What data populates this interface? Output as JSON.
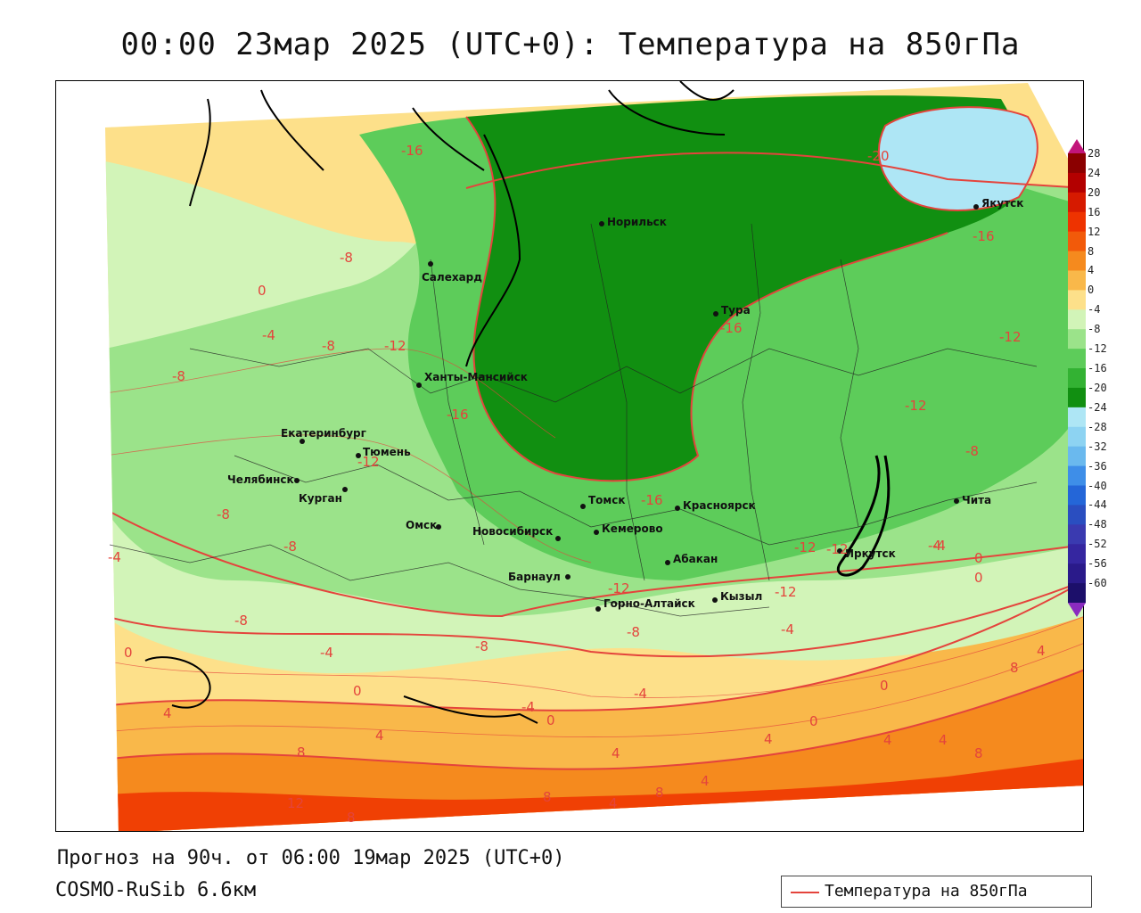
{
  "title": "00:00 23мар 2025 (UTC+0): Температура на 850гПа",
  "footer": {
    "forecast": "Прогноз на 90ч. от 06:00 19мар 2025 (UTC+0)",
    "model": "COSMO-RuSib 6.6км"
  },
  "legend": {
    "label": "Температура на 850гПа",
    "line_color": "#e4443c"
  },
  "colorbar": {
    "ticks": [
      "28",
      "24",
      "20",
      "16",
      "12",
      "8",
      "4",
      "0",
      "-4",
      "-8",
      "-12",
      "-16",
      "-20",
      "-24",
      "-28",
      "-32",
      "-36",
      "-40",
      "-44",
      "-48",
      "-52",
      "-56",
      "-60"
    ],
    "colors": [
      "#8b0000",
      "#b30000",
      "#d61a00",
      "#ee3300",
      "#f25a0a",
      "#f58a1e",
      "#f9b84a",
      "#fde08a",
      "#d2f4b8",
      "#9be38a",
      "#5dcc5a",
      "#33b233",
      "#118f11",
      "#aee6f5",
      "#8dd3f2",
      "#6ab9ee",
      "#3e8ee8",
      "#2466d8",
      "#2a4ec0",
      "#3a3ab0",
      "#3526a0",
      "#2a1a8a",
      "#1c0f6a"
    ]
  },
  "cities": [
    {
      "name": "Якутск"
    },
    {
      "name": "Норильск"
    },
    {
      "name": "Салехард"
    },
    {
      "name": "Тура"
    },
    {
      "name": "Ханты-Мансийск"
    },
    {
      "name": "Екатеринбург"
    },
    {
      "name": "Тюмень"
    },
    {
      "name": "Челябинск"
    },
    {
      "name": "Курган"
    },
    {
      "name": "Омск"
    },
    {
      "name": "Томск"
    },
    {
      "name": "Новосибирск"
    },
    {
      "name": "Кемерово"
    },
    {
      "name": "Красноярск"
    },
    {
      "name": "Абакан"
    },
    {
      "name": "Барнаул"
    },
    {
      "name": "Иркутск"
    },
    {
      "name": "Чита"
    },
    {
      "name": "Горно-Алтайск"
    },
    {
      "name": "Кызыл"
    }
  ],
  "contour_labels": [
    "-16",
    "-20",
    "-16",
    "-8",
    "0",
    "-4",
    "-8",
    "-12",
    "-16",
    "-16",
    "-12",
    "-12",
    "-8",
    "-8",
    "-12",
    "-8",
    "-4",
    "-8",
    "-4",
    "-8",
    "-16",
    "-12",
    "-12",
    "-4",
    "0",
    "4",
    "-12",
    "-8",
    "-4",
    "-8",
    "-12",
    "0",
    "-4",
    "-4",
    "0",
    "-4",
    "0",
    "4",
    "4",
    "4",
    "8",
    "12",
    "8",
    "8",
    "4",
    "4",
    "8",
    "4",
    "0",
    "0",
    "8",
    "4",
    "0",
    "4",
    "8"
  ]
}
